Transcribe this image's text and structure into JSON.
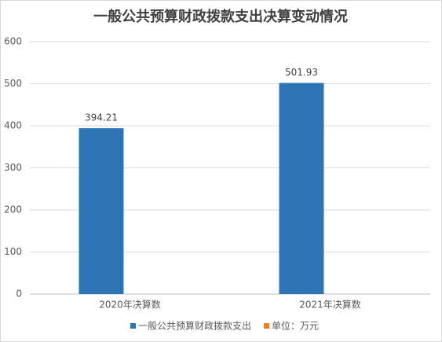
{
  "chart_data": {
    "type": "bar",
    "title": "一般公共预算财政拨款支出决算变动情况",
    "categories": [
      "2020年决算数",
      "2021年决算数"
    ],
    "series": [
      {
        "name": "一般公共预算财政拨款支出",
        "color": "#2e75b6",
        "values": [
          394.21,
          501.93
        ]
      },
      {
        "name": "单位：万元",
        "color": "#ed7d31",
        "values": [
          null,
          null
        ]
      }
    ],
    "ylim": [
      0,
      600
    ],
    "yticks": [
      0,
      100,
      200,
      300,
      400,
      500,
      600
    ],
    "grid": true,
    "legend": "bottom"
  }
}
